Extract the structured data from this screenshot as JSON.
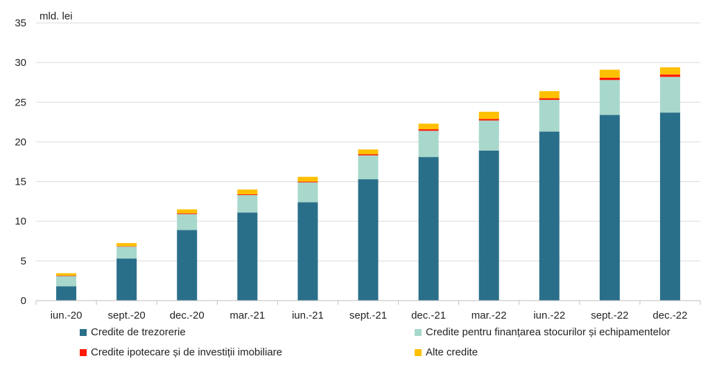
{
  "chart_data": {
    "type": "bar",
    "stacked": true,
    "unit_label": "mld. lei",
    "categories": [
      "iun.-20",
      "sept.-20",
      "dec.-20",
      "mar.-21",
      "iun.-21",
      "sept.-21",
      "dec.-21",
      "mar.-22",
      "iun.-22",
      "sept.-22",
      "dec.-22"
    ],
    "series": [
      {
        "name": "Credite de trezorerie",
        "color": "#2a6f8a",
        "values": [
          1.8,
          5.3,
          8.9,
          11.1,
          12.4,
          15.3,
          18.1,
          18.9,
          21.3,
          23.4,
          23.7
        ]
      },
      {
        "name": "Credite pentru finanțarea stocurilor și echipamentelor",
        "color": "#a8d8cc",
        "values": [
          1.3,
          1.5,
          2.0,
          2.2,
          2.5,
          3.0,
          3.3,
          3.8,
          4.0,
          4.4,
          4.5
        ]
      },
      {
        "name": "Credite ipotecare și de investiții imobiliare",
        "color": "#ff1a00",
        "values": [
          0.05,
          0.05,
          0.1,
          0.1,
          0.1,
          0.15,
          0.2,
          0.2,
          0.2,
          0.3,
          0.3
        ]
      },
      {
        "name": "Alte credite",
        "color": "#ffc000",
        "values": [
          0.3,
          0.4,
          0.5,
          0.6,
          0.6,
          0.6,
          0.7,
          0.9,
          0.9,
          1.0,
          0.9
        ]
      }
    ],
    "ylim": [
      0,
      35
    ],
    "yticks": [
      0,
      5,
      10,
      15,
      20,
      25,
      30,
      35
    ],
    "grid": true,
    "legend_position": "bottom"
  }
}
